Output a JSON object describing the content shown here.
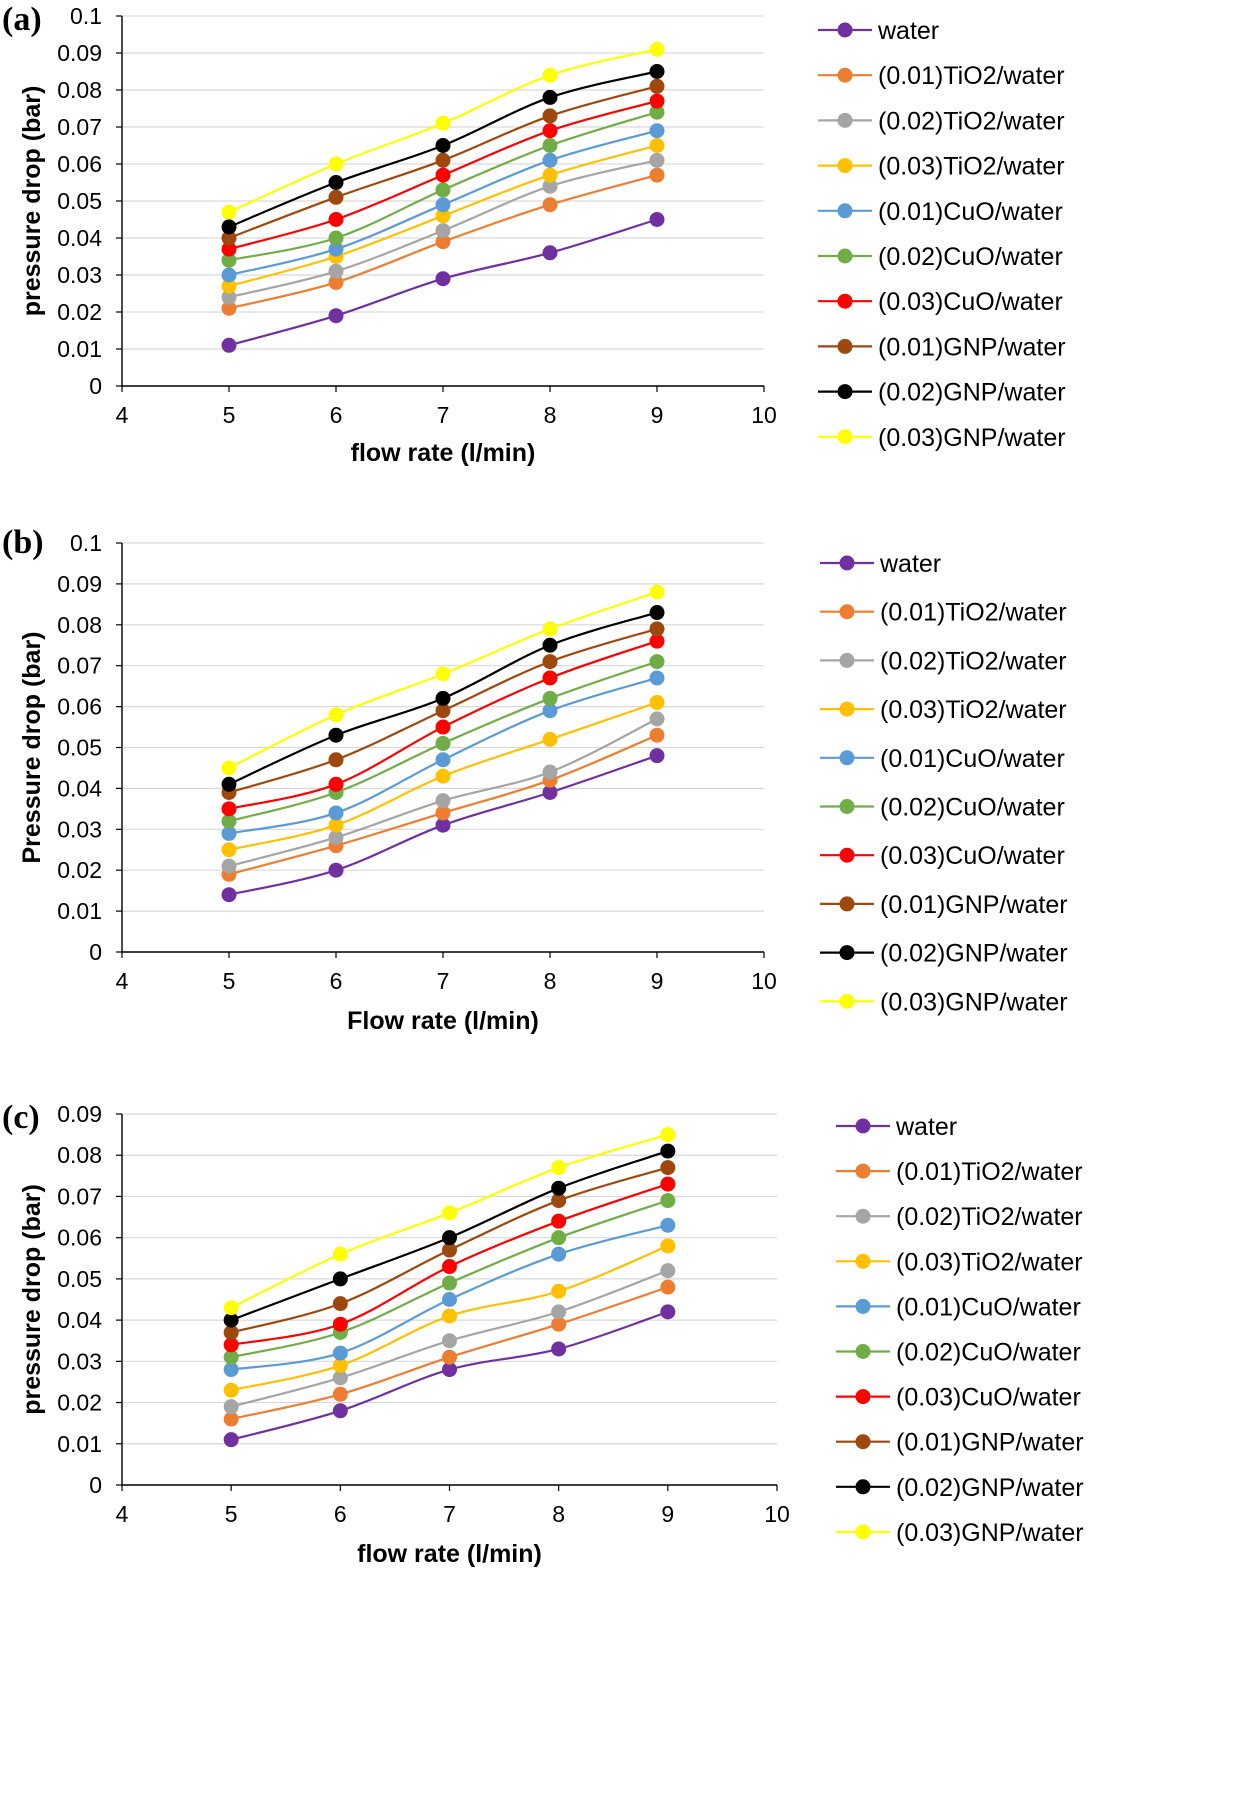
{
  "colors": {
    "water": "#7030a0",
    "tio2_001": "#ed7d31",
    "tio2_002": "#a5a5a5",
    "tio2_003": "#ffc000",
    "cuo_001": "#5b9bd5",
    "cuo_002": "#70ad47",
    "cuo_003": "#ff0000",
    "gnp_001": "#9e480e",
    "gnp_002": "#000000",
    "gnp_003": "#ffff00"
  },
  "chart_data": [
    {
      "type": "line",
      "panel_label": "(a)",
      "xlabel": "flow rate (l/min)",
      "ylabel": "pressure drop (bar)",
      "xlim": [
        4,
        10
      ],
      "ylim": [
        0,
        0.1
      ],
      "xticks": [
        "4",
        "5",
        "6",
        "7",
        "8",
        "9",
        "10"
      ],
      "yticks": [
        "0",
        "0.01",
        "0.02",
        "0.03",
        "0.04",
        "0.05",
        "0.06",
        "0.07",
        "0.08",
        "0.09",
        "0.1"
      ],
      "x": [
        5,
        6,
        7,
        8,
        9
      ],
      "series": [
        {
          "name": "water",
          "color_key": "water",
          "values": [
            0.011,
            0.019,
            0.029,
            0.036,
            0.045
          ]
        },
        {
          "name": "(0.01)TiO2/water",
          "color_key": "tio2_001",
          "values": [
            0.021,
            0.028,
            0.039,
            0.049,
            0.057
          ]
        },
        {
          "name": "(0.02)TiO2/water",
          "color_key": "tio2_002",
          "values": [
            0.024,
            0.031,
            0.042,
            0.054,
            0.061
          ]
        },
        {
          "name": "(0.03)TiO2/water",
          "color_key": "tio2_003",
          "values": [
            0.027,
            0.035,
            0.046,
            0.057,
            0.065
          ]
        },
        {
          "name": "(0.01)CuO/water",
          "color_key": "cuo_001",
          "values": [
            0.03,
            0.037,
            0.049,
            0.061,
            0.069
          ]
        },
        {
          "name": "(0.02)CuO/water",
          "color_key": "cuo_002",
          "values": [
            0.034,
            0.04,
            0.053,
            0.065,
            0.074
          ]
        },
        {
          "name": "(0.03)CuO/water",
          "color_key": "cuo_003",
          "values": [
            0.037,
            0.045,
            0.057,
            0.069,
            0.077
          ]
        },
        {
          "name": "(0.01)GNP/water",
          "color_key": "gnp_001",
          "values": [
            0.04,
            0.051,
            0.061,
            0.073,
            0.081
          ]
        },
        {
          "name": "(0.02)GNP/water",
          "color_key": "gnp_002",
          "values": [
            0.043,
            0.055,
            0.065,
            0.078,
            0.085
          ]
        },
        {
          "name": "(0.03)GNP/water",
          "color_key": "gnp_003",
          "values": [
            0.047,
            0.06,
            0.071,
            0.084,
            0.091
          ]
        }
      ]
    },
    {
      "type": "line",
      "panel_label": "(b)",
      "xlabel": "Flow rate (l/min)",
      "ylabel": "Pressure drop (bar)",
      "xlim": [
        4,
        10
      ],
      "ylim": [
        0,
        0.1
      ],
      "xticks": [
        "4",
        "5",
        "6",
        "7",
        "8",
        "9",
        "10"
      ],
      "yticks": [
        "0",
        "0.01",
        "0.02",
        "0.03",
        "0.04",
        "0.05",
        "0.06",
        "0.07",
        "0.08",
        "0.09",
        "0.1"
      ],
      "x": [
        5,
        6,
        7,
        8,
        9
      ],
      "series": [
        {
          "name": "water",
          "color_key": "water",
          "values": [
            0.014,
            0.02,
            0.031,
            0.039,
            0.048
          ]
        },
        {
          "name": "(0.01)TiO2/water",
          "color_key": "tio2_001",
          "values": [
            0.019,
            0.026,
            0.034,
            0.042,
            0.053
          ]
        },
        {
          "name": "(0.02)TiO2/water",
          "color_key": "tio2_002",
          "values": [
            0.021,
            0.028,
            0.037,
            0.044,
            0.057
          ]
        },
        {
          "name": "(0.03)TiO2/water",
          "color_key": "tio2_003",
          "values": [
            0.025,
            0.031,
            0.043,
            0.052,
            0.061
          ]
        },
        {
          "name": "(0.01)CuO/water",
          "color_key": "cuo_001",
          "values": [
            0.029,
            0.034,
            0.047,
            0.059,
            0.067
          ]
        },
        {
          "name": "(0.02)CuO/water",
          "color_key": "cuo_002",
          "values": [
            0.032,
            0.039,
            0.051,
            0.062,
            0.071
          ]
        },
        {
          "name": "(0.03)CuO/water",
          "color_key": "cuo_003",
          "values": [
            0.035,
            0.041,
            0.055,
            0.067,
            0.076
          ]
        },
        {
          "name": "(0.01)GNP/water",
          "color_key": "gnp_001",
          "values": [
            0.039,
            0.047,
            0.059,
            0.071,
            0.079
          ]
        },
        {
          "name": "(0.02)GNP/water",
          "color_key": "gnp_002",
          "values": [
            0.041,
            0.053,
            0.062,
            0.075,
            0.083
          ]
        },
        {
          "name": "(0.03)GNP/water",
          "color_key": "gnp_003",
          "values": [
            0.045,
            0.058,
            0.068,
            0.079,
            0.088
          ]
        }
      ]
    },
    {
      "type": "line",
      "panel_label": "(c)",
      "xlabel": "flow rate (l/min)",
      "ylabel": "pressure drop (bar)",
      "xlim": [
        4,
        10
      ],
      "ylim": [
        0,
        0.09
      ],
      "xticks": [
        "4",
        "5",
        "6",
        "7",
        "8",
        "9",
        "10"
      ],
      "yticks": [
        "0",
        "0.01",
        "0.02",
        "0.03",
        "0.04",
        "0.05",
        "0.06",
        "0.07",
        "0.08",
        "0.09"
      ],
      "x": [
        5,
        6,
        7,
        8,
        9
      ],
      "series": [
        {
          "name": "water",
          "color_key": "water",
          "values": [
            0.011,
            0.018,
            0.028,
            0.033,
            0.042
          ]
        },
        {
          "name": "(0.01)TiO2/water",
          "color_key": "tio2_001",
          "values": [
            0.016,
            0.022,
            0.031,
            0.039,
            0.048
          ]
        },
        {
          "name": "(0.02)TiO2/water",
          "color_key": "tio2_002",
          "values": [
            0.019,
            0.026,
            0.035,
            0.042,
            0.052
          ]
        },
        {
          "name": "(0.03)TiO2/water",
          "color_key": "tio2_003",
          "values": [
            0.023,
            0.029,
            0.041,
            0.047,
            0.058
          ]
        },
        {
          "name": "(0.01)CuO/water",
          "color_key": "cuo_001",
          "values": [
            0.028,
            0.032,
            0.045,
            0.056,
            0.063
          ]
        },
        {
          "name": "(0.02)CuO/water",
          "color_key": "cuo_002",
          "values": [
            0.031,
            0.037,
            0.049,
            0.06,
            0.069
          ]
        },
        {
          "name": "(0.03)CuO/water",
          "color_key": "cuo_003",
          "values": [
            0.034,
            0.039,
            0.053,
            0.064,
            0.073
          ]
        },
        {
          "name": "(0.01)GNP/water",
          "color_key": "gnp_001",
          "values": [
            0.037,
            0.044,
            0.057,
            0.069,
            0.077
          ]
        },
        {
          "name": "(0.02)GNP/water",
          "color_key": "gnp_002",
          "values": [
            0.04,
            0.05,
            0.06,
            0.072,
            0.081
          ]
        },
        {
          "name": "(0.03)GNP/water",
          "color_key": "gnp_003",
          "values": [
            0.043,
            0.056,
            0.066,
            0.077,
            0.085
          ]
        }
      ]
    }
  ]
}
